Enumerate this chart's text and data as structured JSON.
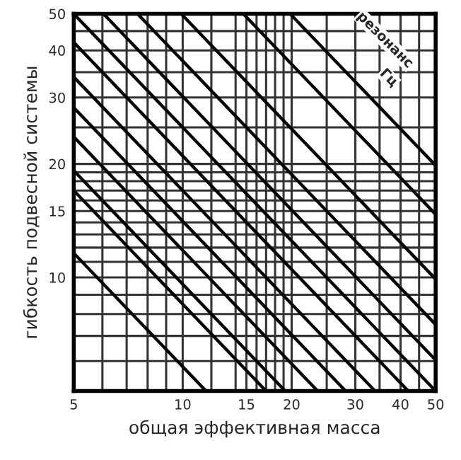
{
  "chart_data": {
    "type": "line",
    "xlabel": "общая эффективная масса",
    "ylabel": "гибкость подвесной системы",
    "annotations": [
      "резонанс",
      "Гц"
    ],
    "log": "xy",
    "grid": true,
    "legend": false,
    "marker": "none",
    "line_style": "solid",
    "xlim": [
      5,
      50
    ],
    "ylim": [
      5,
      50
    ],
    "xticks": [
      5,
      {
        "value": 6,
        "label": null
      },
      {
        "value": 7,
        "label": null
      },
      {
        "value": 8,
        "label": null
      },
      {
        "value": 9,
        "label": null
      },
      10,
      {
        "value": 12,
        "label": null
      },
      {
        "value": 14,
        "label": null
      },
      15,
      {
        "value": 16,
        "label": null
      },
      {
        "value": 17,
        "label": null
      },
      {
        "value": 18,
        "label": null
      },
      {
        "value": 19,
        "label": null
      },
      20,
      {
        "value": 25,
        "label": null
      },
      30,
      {
        "value": 35,
        "label": null
      },
      40,
      {
        "value": 45,
        "label": null
      },
      50
    ],
    "yticks": [
      {
        "value": 6,
        "label": null
      },
      {
        "value": 7,
        "label": null
      },
      {
        "value": 8,
        "label": null
      },
      {
        "value": 9,
        "label": null
      },
      10,
      {
        "value": 11,
        "label": null
      },
      {
        "value": 12,
        "label": null
      },
      {
        "value": 13,
        "label": null
      },
      {
        "value": 14,
        "label": null
      },
      15,
      {
        "value": 16,
        "label": null
      },
      {
        "value": 17,
        "label": null
      },
      {
        "value": 18,
        "label": null
      },
      {
        "value": 19,
        "label": null
      },
      20,
      {
        "value": 25,
        "label": null
      },
      30,
      {
        "value": 35,
        "label": null
      },
      40,
      {
        "value": 45,
        "label": null
      },
      50
    ],
    "series": [
      {
        "color": "#000000",
        "x": [
          5,
          11.6
        ],
        "values": [
          11.6,
          5
        ]
      },
      {
        "color": "#000000",
        "x": [
          5,
          17
        ],
        "values": [
          17,
          5
        ]
      },
      {
        "color": "#000000",
        "x": [
          5,
          19.2
        ],
        "values": [
          19.2,
          5
        ]
      },
      {
        "color": "#000000",
        "x": [
          5,
          23.6
        ],
        "values": [
          23.6,
          5
        ]
      },
      {
        "color": "#000000",
        "x": [
          5,
          28.2
        ],
        "values": [
          28.2,
          5
        ]
      },
      {
        "color": "#000000",
        "x": [
          5,
          34
        ],
        "values": [
          34,
          5
        ]
      },
      {
        "color": "#000000",
        "x": [
          5,
          42
        ],
        "values": [
          42,
          5
        ]
      },
      {
        "color": "#000000",
        "x": [
          5,
          50
        ],
        "values": [
          50,
          5
        ]
      },
      {
        "color": "#000000",
        "x": [
          6.04,
          50
        ],
        "values": [
          50,
          6.04
        ]
      },
      {
        "color": "#000000",
        "x": [
          7.5,
          50
        ],
        "values": [
          50,
          7.5
        ]
      },
      {
        "color": "#000000",
        "x": [
          9.9,
          50
        ],
        "values": [
          50,
          9.9
        ]
      },
      {
        "color": "#000000",
        "x": [
          14.7,
          50
        ],
        "values": [
          50,
          14.7
        ]
      },
      {
        "color": "#000000",
        "x": [
          19.8,
          50
        ],
        "values": [
          50,
          19.8
        ]
      }
    ]
  }
}
